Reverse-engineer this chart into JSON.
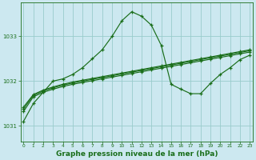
{
  "bg_color": "#cce8f0",
  "grid_color": "#99cccc",
  "line_color": "#1a6e1a",
  "xlabel": "Graphe pression niveau de la mer (hPa)",
  "xlabel_fontsize": 6.5,
  "yticks": [
    1031,
    1032,
    1033
  ],
  "xticks": [
    0,
    1,
    2,
    3,
    4,
    5,
    6,
    7,
    8,
    9,
    10,
    11,
    12,
    13,
    14,
    15,
    16,
    17,
    18,
    19,
    20,
    21,
    22,
    23
  ],
  "xlim": [
    -0.3,
    23.3
  ],
  "ylim": [
    1030.65,
    1033.75
  ],
  "line_peaked_x": [
    0,
    1,
    2,
    3,
    4,
    5,
    6,
    7,
    8,
    9,
    10,
    11,
    12,
    13,
    14,
    15,
    16,
    17,
    18,
    19,
    20,
    21,
    22,
    23
  ],
  "line_peaked_y": [
    1031.1,
    1031.5,
    1031.75,
    1032.0,
    1032.05,
    1032.15,
    1032.3,
    1032.5,
    1032.7,
    1033.0,
    1033.35,
    1033.55,
    1033.45,
    1033.25,
    1032.8,
    1031.93,
    1031.82,
    1031.72,
    1031.72,
    1031.95,
    1032.15,
    1032.3,
    1032.48,
    1032.58
  ],
  "line_flat1_x": [
    0,
    1,
    2,
    3,
    4,
    5,
    6,
    7,
    8,
    9,
    10,
    11,
    12,
    13,
    14,
    15,
    16,
    17,
    18,
    19,
    20,
    21,
    22,
    23
  ],
  "line_flat1_y": [
    1031.32,
    1031.65,
    1031.75,
    1031.82,
    1031.88,
    1031.93,
    1031.97,
    1032.01,
    1032.05,
    1032.09,
    1032.13,
    1032.17,
    1032.21,
    1032.25,
    1032.29,
    1032.33,
    1032.37,
    1032.41,
    1032.45,
    1032.49,
    1032.53,
    1032.57,
    1032.61,
    1032.65
  ],
  "line_flat2_x": [
    0,
    1,
    2,
    3,
    4,
    5,
    6,
    7,
    8,
    9,
    10,
    11,
    12,
    13,
    14,
    15,
    16,
    17,
    18,
    19,
    20,
    21,
    22,
    23
  ],
  "line_flat2_y": [
    1031.38,
    1031.68,
    1031.78,
    1031.85,
    1031.91,
    1031.96,
    1032.0,
    1032.04,
    1032.08,
    1032.12,
    1032.16,
    1032.2,
    1032.24,
    1032.28,
    1032.32,
    1032.36,
    1032.4,
    1032.44,
    1032.48,
    1032.52,
    1032.56,
    1032.6,
    1032.64,
    1032.68
  ],
  "line_flat3_x": [
    0,
    1,
    2,
    3,
    4,
    5,
    6,
    7,
    8,
    9,
    10,
    11,
    12,
    13,
    14,
    15,
    16,
    17,
    18,
    19,
    20,
    21,
    22,
    23
  ],
  "line_flat3_y": [
    1031.42,
    1031.7,
    1031.8,
    1031.87,
    1031.93,
    1031.98,
    1032.02,
    1032.06,
    1032.1,
    1032.14,
    1032.18,
    1032.22,
    1032.26,
    1032.3,
    1032.34,
    1032.38,
    1032.42,
    1032.46,
    1032.5,
    1032.54,
    1032.58,
    1032.62,
    1032.66,
    1032.7
  ]
}
